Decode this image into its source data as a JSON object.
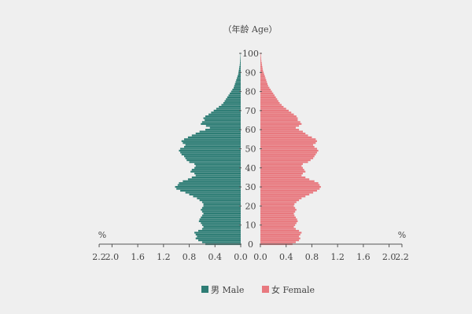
{
  "chart_data": {
    "type": "population-pyramid",
    "center_axis_label": "（年龄 Age）",
    "unit_label": "%",
    "x_ticks": [
      "2.2",
      "2.0",
      "1.6",
      "1.2",
      "0.8",
      "0.4",
      "0.0"
    ],
    "x_tick_values": [
      2.2,
      2.0,
      1.6,
      1.2,
      0.8,
      0.4,
      0.0
    ],
    "xlim": [
      0,
      2.2
    ],
    "age_ticks": [
      0,
      10,
      20,
      30,
      40,
      50,
      60,
      70,
      80,
      90,
      100
    ],
    "ages_range": [
      0,
      100
    ],
    "colors": {
      "male": "#2e7d75",
      "female": "#e8797f",
      "axis": "#555555"
    },
    "legend": {
      "male": "男 Male",
      "female": "女 Female"
    },
    "series": [
      {
        "name": "男 Male",
        "side": "left",
        "values": [
          0.55,
          0.6,
          0.66,
          0.7,
          0.68,
          0.7,
          0.72,
          0.66,
          0.6,
          0.58,
          0.6,
          0.62,
          0.65,
          0.64,
          0.62,
          0.6,
          0.58,
          0.6,
          0.62,
          0.6,
          0.58,
          0.58,
          0.6,
          0.64,
          0.68,
          0.74,
          0.8,
          0.86,
          0.94,
          1.0,
          1.02,
          0.98,
          0.96,
          0.9,
          0.82,
          0.76,
          0.7,
          0.72,
          0.78,
          0.76,
          0.72,
          0.7,
          0.72,
          0.8,
          0.84,
          0.86,
          0.88,
          0.92,
          0.94,
          0.96,
          0.94,
          0.88,
          0.86,
          0.9,
          0.92,
          0.88,
          0.82,
          0.76,
          0.7,
          0.64,
          0.55,
          0.48,
          0.54,
          0.62,
          0.6,
          0.56,
          0.58,
          0.55,
          0.5,
          0.46,
          0.42,
          0.38,
          0.34,
          0.3,
          0.27,
          0.25,
          0.23,
          0.21,
          0.19,
          0.17,
          0.15,
          0.13,
          0.11,
          0.1,
          0.09,
          0.08,
          0.07,
          0.06,
          0.05,
          0.04,
          0.035,
          0.03,
          0.025,
          0.02,
          0.015,
          0.012,
          0.01,
          0.008,
          0.006,
          0.004,
          0.003
        ]
      },
      {
        "name": "女 Female",
        "side": "right",
        "values": [
          0.5,
          0.55,
          0.6,
          0.62,
          0.6,
          0.62,
          0.64,
          0.6,
          0.55,
          0.52,
          0.54,
          0.56,
          0.58,
          0.57,
          0.55,
          0.53,
          0.52,
          0.54,
          0.56,
          0.54,
          0.52,
          0.53,
          0.56,
          0.6,
          0.64,
          0.7,
          0.76,
          0.82,
          0.88,
          0.92,
          0.94,
          0.92,
          0.9,
          0.84,
          0.76,
          0.7,
          0.64,
          0.66,
          0.7,
          0.68,
          0.66,
          0.64,
          0.66,
          0.74,
          0.78,
          0.82,
          0.84,
          0.86,
          0.88,
          0.9,
          0.88,
          0.84,
          0.82,
          0.86,
          0.88,
          0.86,
          0.8,
          0.74,
          0.7,
          0.66,
          0.6,
          0.55,
          0.6,
          0.64,
          0.62,
          0.58,
          0.58,
          0.56,
          0.52,
          0.48,
          0.44,
          0.4,
          0.36,
          0.33,
          0.3,
          0.28,
          0.26,
          0.24,
          0.22,
          0.2,
          0.18,
          0.16,
          0.14,
          0.12,
          0.11,
          0.1,
          0.09,
          0.08,
          0.07,
          0.06,
          0.05,
          0.04,
          0.035,
          0.03,
          0.025,
          0.02,
          0.015,
          0.012,
          0.01,
          0.008,
          0.006
        ]
      }
    ]
  }
}
